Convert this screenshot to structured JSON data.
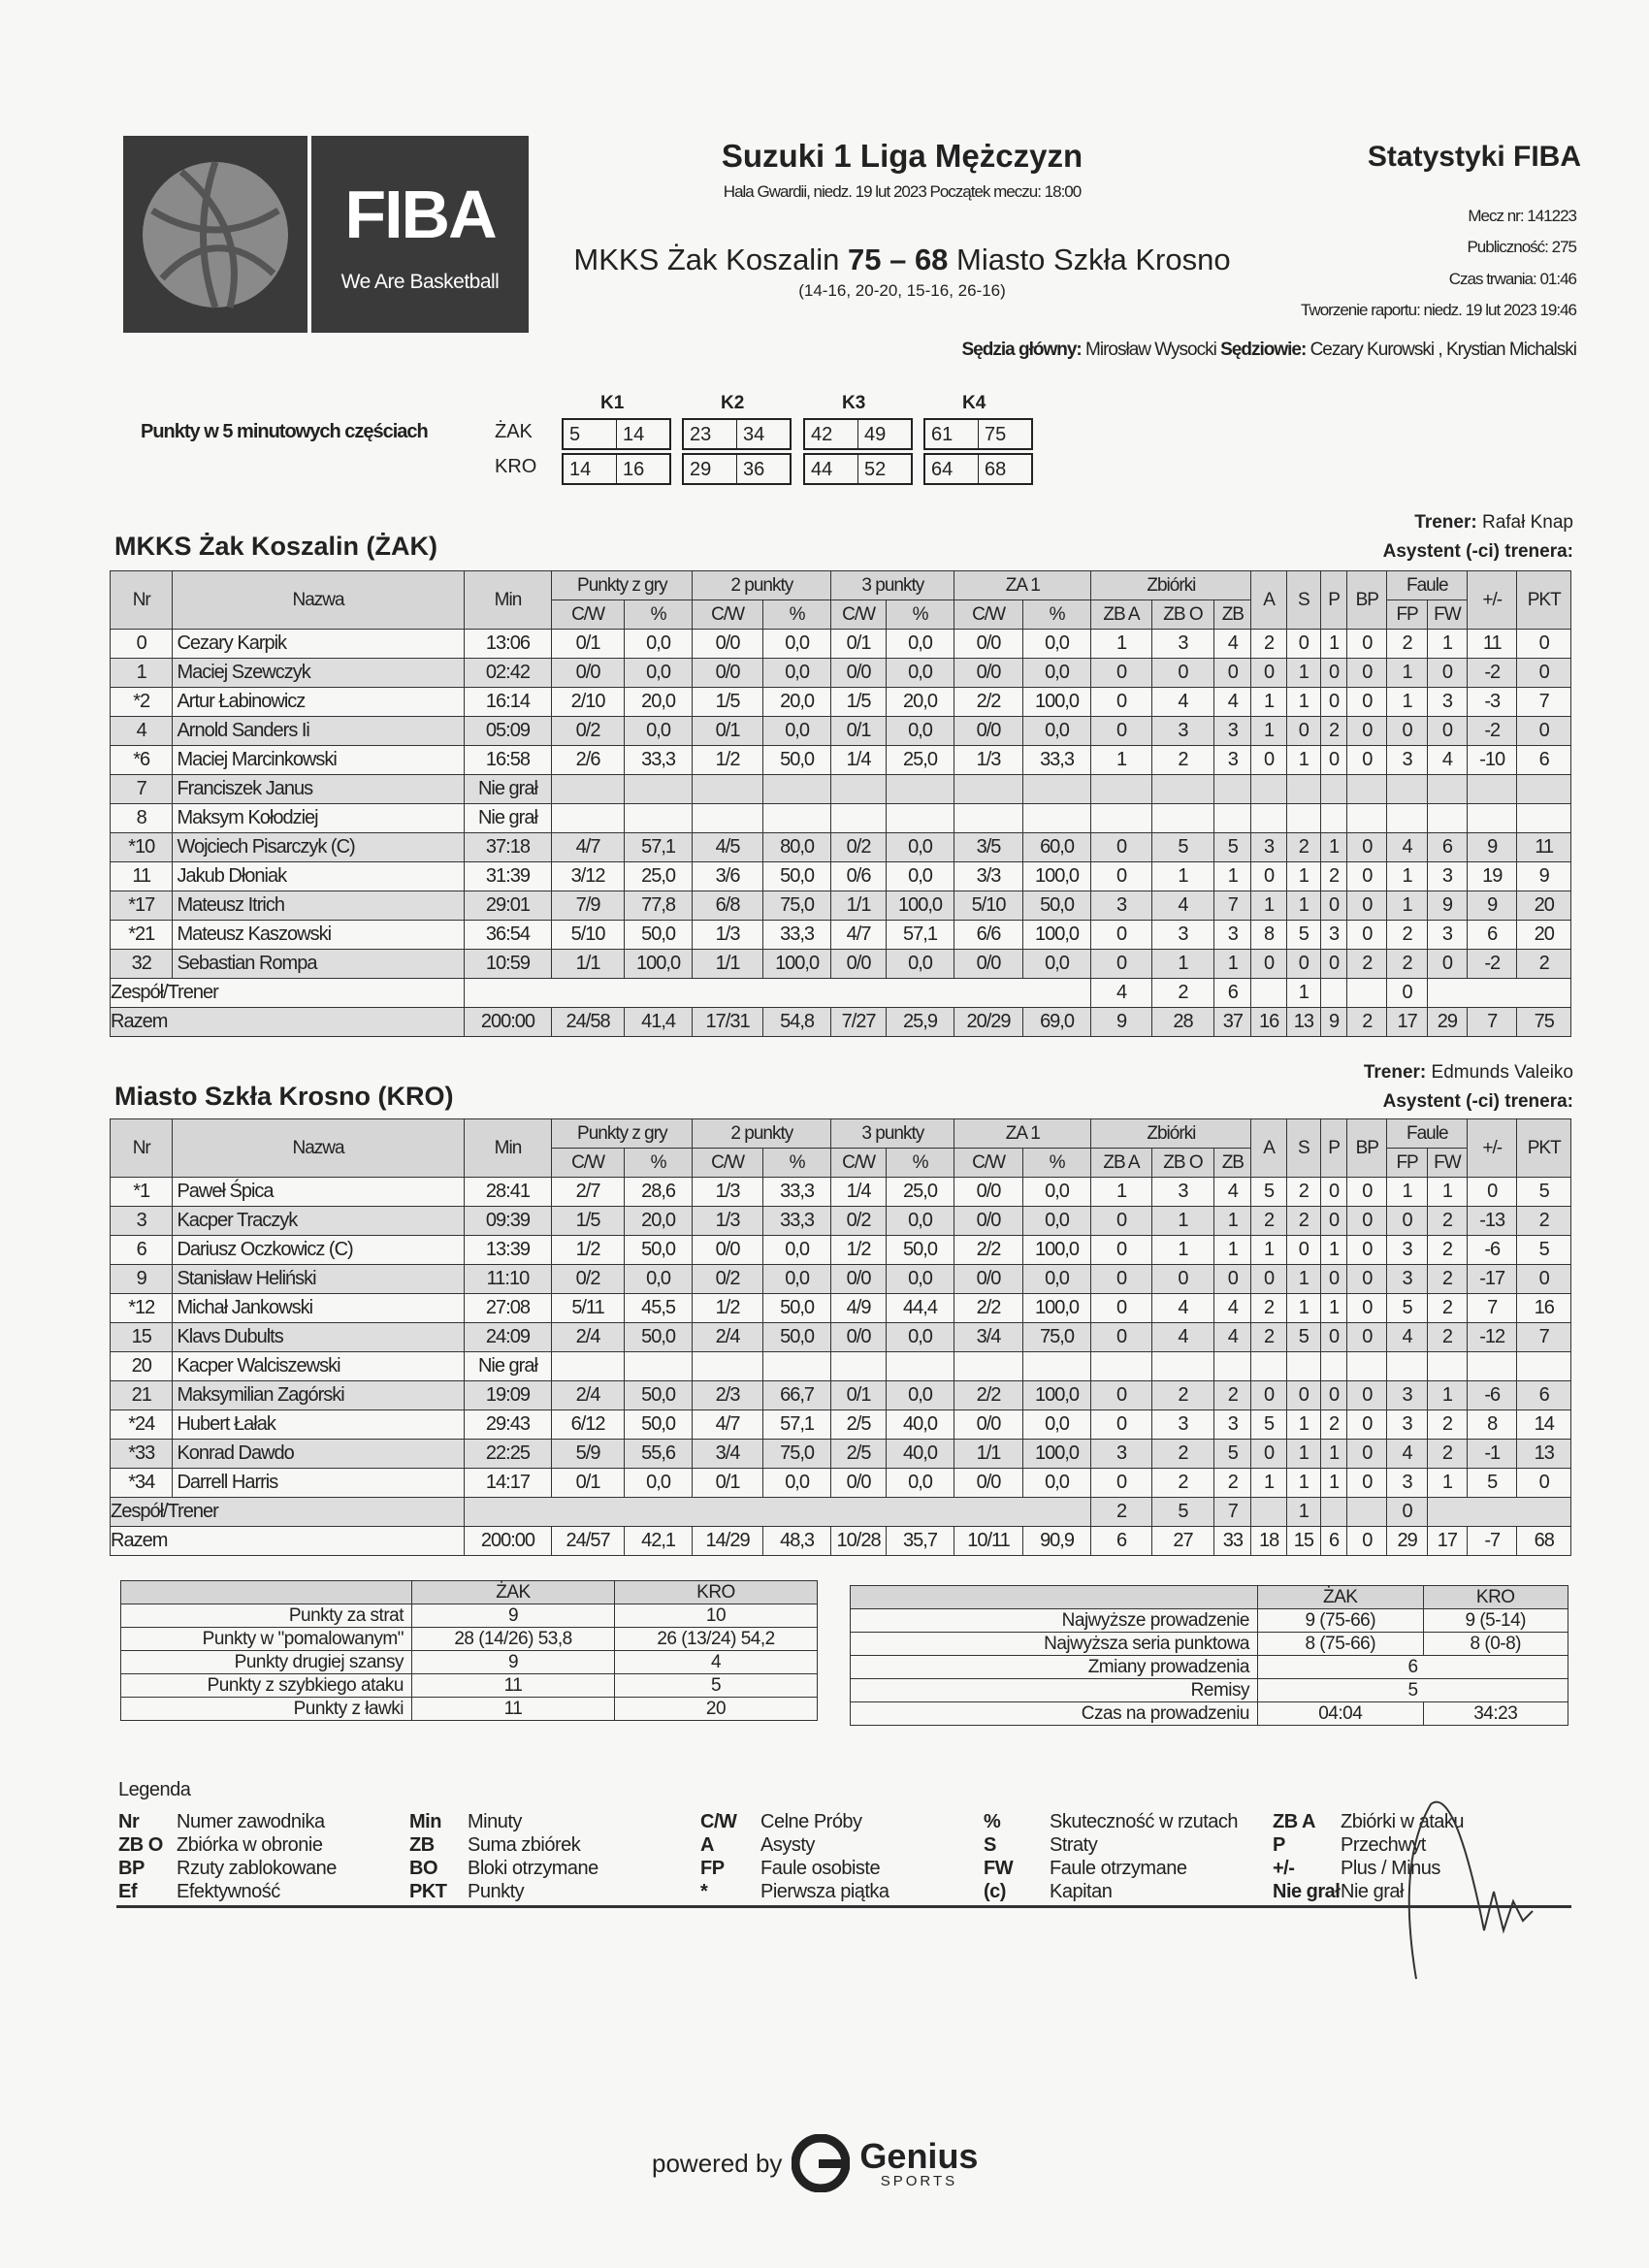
{
  "header": {
    "logo_text": "FIBA",
    "logo_tagline": "We Are Basketball",
    "title": "Suzuki 1 Liga Mężczyzn",
    "venue": "Hala Gwardii, niedz. 19 lut 2023 Początek meczu: 18:00",
    "home_team": "MKKS Żak Koszalin",
    "home_score": "75",
    "score_sep": "–",
    "away_score": "68",
    "away_team": "Miasto Szkła Krosno",
    "quarters": "(14-16, 20-20, 15-16, 26-16)",
    "stats_title": "Statystyki FIBA",
    "match_no": "Mecz nr: 141223",
    "attendance": "Publiczność: 275",
    "duration": "Czas trwania: 01:46",
    "report": "Tworzenie raportu: niedz. 19 lut 2023 19:46",
    "ref_label": "Sędzia główny:",
    "ref_main": "Mirosław Wysocki",
    "refs_label": "Sędziowie:",
    "refs": "Cezary Kurowski , Krystian Michalski"
  },
  "five_min": {
    "label": "Punkty w 5 minutowych częściach",
    "periods": [
      "K1",
      "K2",
      "K3",
      "K4"
    ],
    "teams": [
      {
        "code": "ŻAK",
        "values": [
          [
            "5",
            "14"
          ],
          [
            "23",
            "34"
          ],
          [
            "42",
            "49"
          ],
          [
            "61",
            "75"
          ]
        ]
      },
      {
        "code": "KRO",
        "values": [
          [
            "14",
            "16"
          ],
          [
            "29",
            "36"
          ],
          [
            "44",
            "52"
          ],
          [
            "64",
            "68"
          ]
        ]
      }
    ]
  },
  "columns": {
    "nr": "Nr",
    "name": "Nazwa",
    "min": "Min",
    "groups": [
      "Punkty z gry",
      "2 punkty",
      "3 punkty",
      "ZA 1",
      "Zbiórki",
      "Faule"
    ],
    "cw": "C/W",
    "pct": "%",
    "zba": "ZB A",
    "zbo": "ZB O",
    "zb": "ZB",
    "a": "A",
    "s": "S",
    "p": "P",
    "bp": "BP",
    "fp": "FP",
    "fw": "FW",
    "pm": "+/-",
    "pkt": "PKT"
  },
  "teams": [
    {
      "title": "MKKS Żak Koszalin (ŻAK)",
      "coach_label": "Trener:",
      "coach": "Rafał Knap",
      "assistant_label": "Asystent (-ci) trenera:",
      "players": [
        [
          "0",
          "Cezary Karpik",
          "13:06",
          "0/1",
          "0,0",
          "0/0",
          "0,0",
          "0/1",
          "0,0",
          "0/0",
          "0,0",
          "1",
          "3",
          "4",
          "2",
          "0",
          "1",
          "0",
          "2",
          "1",
          "11",
          "0"
        ],
        [
          "1",
          "Maciej Szewczyk",
          "02:42",
          "0/0",
          "0,0",
          "0/0",
          "0,0",
          "0/0",
          "0,0",
          "0/0",
          "0,0",
          "0",
          "0",
          "0",
          "0",
          "1",
          "0",
          "0",
          "1",
          "0",
          "-2",
          "0"
        ],
        [
          "*2",
          "Artur Łabinowicz",
          "16:14",
          "2/10",
          "20,0",
          "1/5",
          "20,0",
          "1/5",
          "20,0",
          "2/2",
          "100,0",
          "0",
          "4",
          "4",
          "1",
          "1",
          "0",
          "0",
          "1",
          "3",
          "-3",
          "7"
        ],
        [
          "4",
          "Arnold Sanders Ii",
          "05:09",
          "0/2",
          "0,0",
          "0/1",
          "0,0",
          "0/1",
          "0,0",
          "0/0",
          "0,0",
          "0",
          "3",
          "3",
          "1",
          "0",
          "2",
          "0",
          "0",
          "0",
          "-2",
          "0"
        ],
        [
          "*6",
          "Maciej Marcinkowski",
          "16:58",
          "2/6",
          "33,3",
          "1/2",
          "50,0",
          "1/4",
          "25,0",
          "1/3",
          "33,3",
          "1",
          "2",
          "3",
          "0",
          "1",
          "0",
          "0",
          "3",
          "4",
          "-10",
          "6"
        ],
        [
          "7",
          "Franciszek Janus",
          "Nie grał"
        ],
        [
          "8",
          "Maksym Kołodziej",
          "Nie grał"
        ],
        [
          "*10",
          "Wojciech Pisarczyk (C)",
          "37:18",
          "4/7",
          "57,1",
          "4/5",
          "80,0",
          "0/2",
          "0,0",
          "3/5",
          "60,0",
          "0",
          "5",
          "5",
          "3",
          "2",
          "1",
          "0",
          "4",
          "6",
          "9",
          "11"
        ],
        [
          "11",
          "Jakub Dłoniak",
          "31:39",
          "3/12",
          "25,0",
          "3/6",
          "50,0",
          "0/6",
          "0,0",
          "3/3",
          "100,0",
          "0",
          "1",
          "1",
          "0",
          "1",
          "2",
          "0",
          "1",
          "3",
          "19",
          "9"
        ],
        [
          "*17",
          "Mateusz Itrich",
          "29:01",
          "7/9",
          "77,8",
          "6/8",
          "75,0",
          "1/1",
          "100,0",
          "5/10",
          "50,0",
          "3",
          "4",
          "7",
          "1",
          "1",
          "0",
          "0",
          "1",
          "9",
          "9",
          "20"
        ],
        [
          "*21",
          "Mateusz Kaszowski",
          "36:54",
          "5/10",
          "50,0",
          "1/3",
          "33,3",
          "4/7",
          "57,1",
          "6/6",
          "100,0",
          "0",
          "3",
          "3",
          "8",
          "5",
          "3",
          "0",
          "2",
          "3",
          "6",
          "20"
        ],
        [
          "32",
          "Sebastian Rompa",
          "10:59",
          "1/1",
          "100,0",
          "1/1",
          "100,0",
          "0/0",
          "0,0",
          "0/0",
          "0,0",
          "0",
          "1",
          "1",
          "0",
          "0",
          "0",
          "2",
          "2",
          "0",
          "-2",
          "2"
        ]
      ],
      "team_row": {
        "label": "Zespół/Trener",
        "zba": "4",
        "zbo": "2",
        "zb": "6",
        "s": "1",
        "fp": "0"
      },
      "total": {
        "label": "Razem",
        "values": [
          "200:00",
          "24/58",
          "41,4",
          "17/31",
          "54,8",
          "7/27",
          "25,9",
          "20/29",
          "69,0",
          "9",
          "28",
          "37",
          "16",
          "13",
          "9",
          "2",
          "17",
          "29",
          "7",
          "75"
        ]
      }
    },
    {
      "title": "Miasto Szkła Krosno (KRO)",
      "coach_label": "Trener:",
      "coach": "Edmunds Valeiko",
      "assistant_label": "Asystent (-ci) trenera:",
      "players": [
        [
          "*1",
          "Paweł Śpica",
          "28:41",
          "2/7",
          "28,6",
          "1/3",
          "33,3",
          "1/4",
          "25,0",
          "0/0",
          "0,0",
          "1",
          "3",
          "4",
          "5",
          "2",
          "0",
          "0",
          "1",
          "1",
          "0",
          "5"
        ],
        [
          "3",
          "Kacper Traczyk",
          "09:39",
          "1/5",
          "20,0",
          "1/3",
          "33,3",
          "0/2",
          "0,0",
          "0/0",
          "0,0",
          "0",
          "1",
          "1",
          "2",
          "2",
          "0",
          "0",
          "0",
          "2",
          "-13",
          "2"
        ],
        [
          "6",
          "Dariusz Oczkowicz (C)",
          "13:39",
          "1/2",
          "50,0",
          "0/0",
          "0,0",
          "1/2",
          "50,0",
          "2/2",
          "100,0",
          "0",
          "1",
          "1",
          "1",
          "0",
          "1",
          "0",
          "3",
          "2",
          "-6",
          "5"
        ],
        [
          "9",
          "Stanisław Heliński",
          "11:10",
          "0/2",
          "0,0",
          "0/2",
          "0,0",
          "0/0",
          "0,0",
          "0/0",
          "0,0",
          "0",
          "0",
          "0",
          "0",
          "1",
          "0",
          "0",
          "3",
          "2",
          "-17",
          "0"
        ],
        [
          "*12",
          "Michał Jankowski",
          "27:08",
          "5/11",
          "45,5",
          "1/2",
          "50,0",
          "4/9",
          "44,4",
          "2/2",
          "100,0",
          "0",
          "4",
          "4",
          "2",
          "1",
          "1",
          "0",
          "5",
          "2",
          "7",
          "16"
        ],
        [
          "15",
          "Klavs Dubults",
          "24:09",
          "2/4",
          "50,0",
          "2/4",
          "50,0",
          "0/0",
          "0,0",
          "3/4",
          "75,0",
          "0",
          "4",
          "4",
          "2",
          "5",
          "0",
          "0",
          "4",
          "2",
          "-12",
          "7"
        ],
        [
          "20",
          "Kacper Walciszewski",
          "Nie grał"
        ],
        [
          "21",
          "Maksymilian Zagórski",
          "19:09",
          "2/4",
          "50,0",
          "2/3",
          "66,7",
          "0/1",
          "0,0",
          "2/2",
          "100,0",
          "0",
          "2",
          "2",
          "0",
          "0",
          "0",
          "0",
          "3",
          "1",
          "-6",
          "6"
        ],
        [
          "*24",
          "Hubert Łałak",
          "29:43",
          "6/12",
          "50,0",
          "4/7",
          "57,1",
          "2/5",
          "40,0",
          "0/0",
          "0,0",
          "0",
          "3",
          "3",
          "5",
          "1",
          "2",
          "0",
          "3",
          "2",
          "8",
          "14"
        ],
        [
          "*33",
          "Konrad Dawdo",
          "22:25",
          "5/9",
          "55,6",
          "3/4",
          "75,0",
          "2/5",
          "40,0",
          "1/1",
          "100,0",
          "3",
          "2",
          "5",
          "0",
          "1",
          "1",
          "0",
          "4",
          "2",
          "-1",
          "13"
        ],
        [
          "*34",
          "Darrell Harris",
          "14:17",
          "0/1",
          "0,0",
          "0/1",
          "0,0",
          "0/0",
          "0,0",
          "0/0",
          "0,0",
          "0",
          "2",
          "2",
          "1",
          "1",
          "1",
          "0",
          "3",
          "1",
          "5",
          "0"
        ]
      ],
      "team_row": {
        "label": "Zespół/Trener",
        "zba": "2",
        "zbo": "5",
        "zb": "7",
        "s": "1",
        "fp": "0"
      },
      "total": {
        "label": "Razem",
        "values": [
          "200:00",
          "24/57",
          "42,1",
          "14/29",
          "48,3",
          "10/28",
          "35,7",
          "10/11",
          "90,9",
          "6",
          "27",
          "33",
          "18",
          "15",
          "6",
          "0",
          "29",
          "17",
          "-7",
          "68"
        ]
      }
    }
  ],
  "points_table": {
    "headers": [
      "",
      "ŻAK",
      "KRO"
    ],
    "rows": [
      [
        "Punkty za strat",
        "9",
        "10"
      ],
      [
        "Punkty w \"pomalowanym\"",
        "28 (14/26) 53,8",
        "26 (13/24) 54,2"
      ],
      [
        "Punkty drugiej szansy",
        "9",
        "4"
      ],
      [
        "Punkty z szybkiego ataku",
        "11",
        "5"
      ],
      [
        "Punkty z ławki",
        "11",
        "20"
      ]
    ]
  },
  "lead_table": {
    "headers": [
      "",
      "ŻAK",
      "KRO"
    ],
    "rows": [
      [
        "Najwyższe prowadzenie",
        "9 (75-66)",
        "9 (5-14)"
      ],
      [
        "Najwyższa seria punktowa",
        "8 (75-66)",
        "8 (0-8)"
      ],
      [
        "Zmiany prowadzenia",
        "6"
      ],
      [
        "Remisy",
        "5"
      ],
      [
        "Czas na prowadzeniu",
        "04:04",
        "34:23"
      ]
    ]
  },
  "legend": {
    "title": "Legenda",
    "items": [
      [
        "Nr",
        "Numer zawodnika"
      ],
      [
        "Min",
        "Minuty"
      ],
      [
        "C/W",
        "Celne Próby"
      ],
      [
        "%",
        "Skuteczność w rzutach"
      ],
      [
        "ZB A",
        "Zbiórki w ataku"
      ],
      [
        "ZB O",
        "Zbiórka w obronie"
      ],
      [
        "ZB",
        "Suma zbiórek"
      ],
      [
        "A",
        "Asysty"
      ],
      [
        "S",
        "Straty"
      ],
      [
        "P",
        "Przechwyt"
      ],
      [
        "BP",
        "Rzuty zablokowane"
      ],
      [
        "BO",
        "Bloki otrzymane"
      ],
      [
        "FP",
        "Faule osobiste"
      ],
      [
        "FW",
        "Faule otrzymane"
      ],
      [
        "+/-",
        "Plus / Minus"
      ],
      [
        "Ef",
        "Efektywność"
      ],
      [
        "PKT",
        "Punkty"
      ],
      [
        "*",
        "Pierwsza piątka"
      ],
      [
        "(c)",
        "Kapitan"
      ],
      [
        "Nie grał",
        "Nie grał"
      ]
    ]
  },
  "footer": {
    "powered_by": "powered by",
    "brand": "Genius",
    "brand_sub": "SPORTS"
  }
}
